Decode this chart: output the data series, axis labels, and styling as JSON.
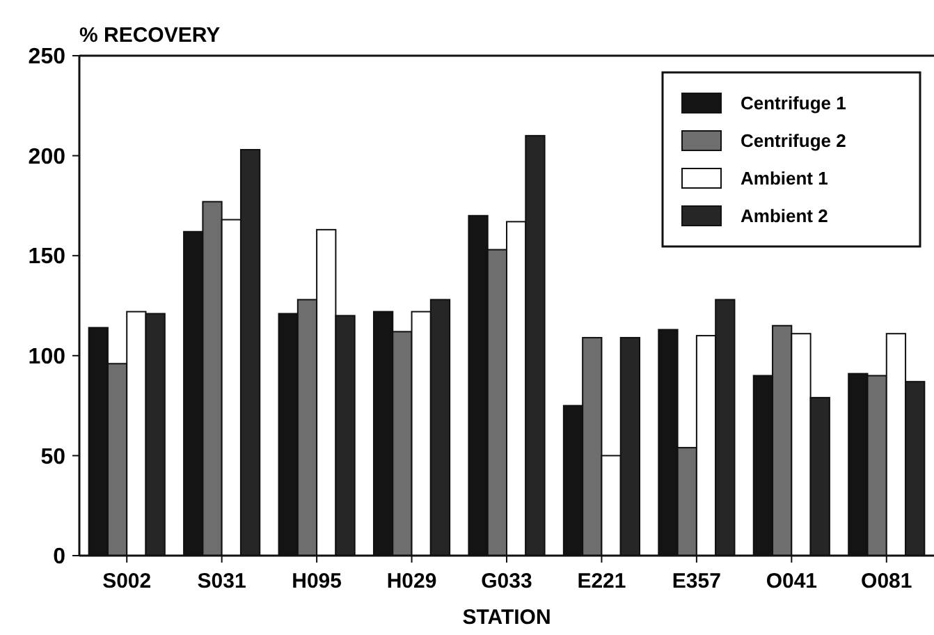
{
  "chart_data": {
    "type": "bar",
    "ylabel": "% RECOVERY",
    "xlabel": "STATION",
    "categories": [
      "S002",
      "S031",
      "H095",
      "H029",
      "G033",
      "E221",
      "E357",
      "O041",
      "O081"
    ],
    "series": [
      {
        "name": "Centrifuge 1",
        "color": "#141414",
        "values": [
          114,
          162,
          121,
          122,
          170,
          75,
          113,
          90,
          91
        ]
      },
      {
        "name": "Centrifuge 2",
        "color": "#6e6e6e",
        "values": [
          96,
          177,
          128,
          112,
          153,
          109,
          54,
          115,
          90
        ]
      },
      {
        "name": "Ambient 1",
        "color": "#ffffff",
        "values": [
          122,
          168,
          163,
          122,
          167,
          50,
          110,
          111,
          111
        ]
      },
      {
        "name": "Ambient 2",
        "color": "#262626",
        "values": [
          121,
          203,
          120,
          128,
          210,
          109,
          128,
          79,
          87
        ]
      }
    ],
    "ylim": [
      0,
      250
    ],
    "yticks": [
      0,
      50,
      100,
      150,
      200,
      250
    ],
    "grid": false,
    "legend": "top right"
  }
}
